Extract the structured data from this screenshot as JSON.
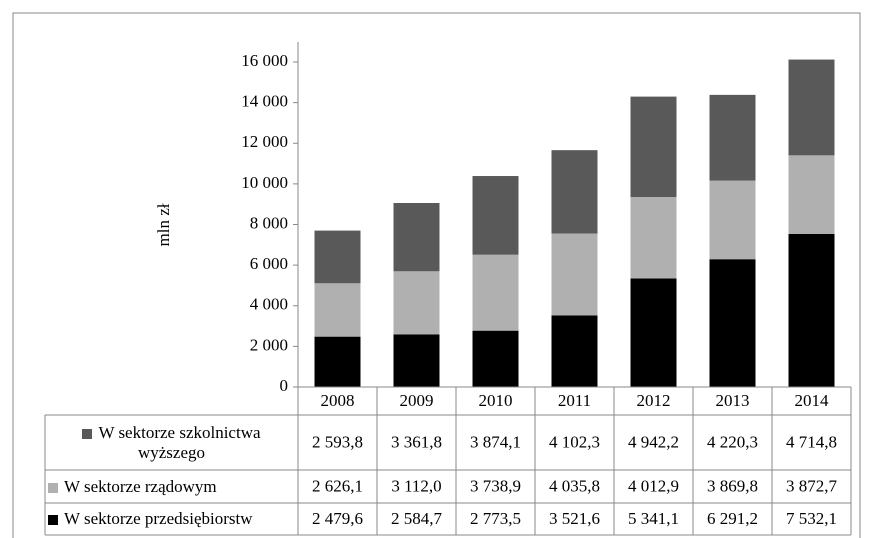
{
  "chart_data": {
    "type": "bar",
    "stacked": true,
    "y_label": "mln zł",
    "categories": [
      "2008",
      "2009",
      "2010",
      "2011",
      "2012",
      "2013",
      "2014"
    ],
    "series": [
      {
        "name": "W sektorze szkolnictwa wyższego",
        "color": "#595959",
        "values": [
          2593.8,
          3361.8,
          3874.1,
          4102.3,
          4942.2,
          4220.3,
          4714.8
        ],
        "value_labels": [
          "2 593,8",
          "3 361,8",
          "3 874,1",
          "4 102,3",
          "4 942,2",
          "4 220,3",
          "4 714,8"
        ]
      },
      {
        "name": "W sektorze rządowym",
        "color": "#b0b0b0",
        "values": [
          2626.1,
          3112.0,
          3738.9,
          4035.8,
          4012.9,
          3869.8,
          3872.7
        ],
        "value_labels": [
          "2 626,1",
          "3 112,0",
          "3 738,9",
          "4 035,8",
          "4 012,9",
          "3 869,8",
          "3 872,7"
        ]
      },
      {
        "name": "W sektorze przedsiębiorstw",
        "color": "#000000",
        "values": [
          2479.6,
          2584.7,
          2773.5,
          3521.6,
          5341.1,
          6291.2,
          7532.1
        ],
        "value_labels": [
          "2 479,6",
          "2 584,7",
          "2 773,5",
          "3 521,6",
          "5 341,1",
          "6 291,2",
          "7 532,1"
        ]
      }
    ],
    "ylim": [
      0,
      16000
    ],
    "yticks": [
      0,
      {
        "value": 2000,
        "label": "2 000"
      },
      {
        "value": 4000,
        "label": "4 000"
      },
      {
        "value": 6000,
        "label": "6 000"
      },
      {
        "value": 8000,
        "label": "8 000"
      },
      {
        "value": 10000,
        "label": "10 000"
      },
      {
        "value": 12000,
        "label": "12 000"
      },
      {
        "value": 14000,
        "label": "14 000"
      },
      {
        "value": 16000,
        "label": "16 000"
      }
    ],
    "grid": false
  }
}
